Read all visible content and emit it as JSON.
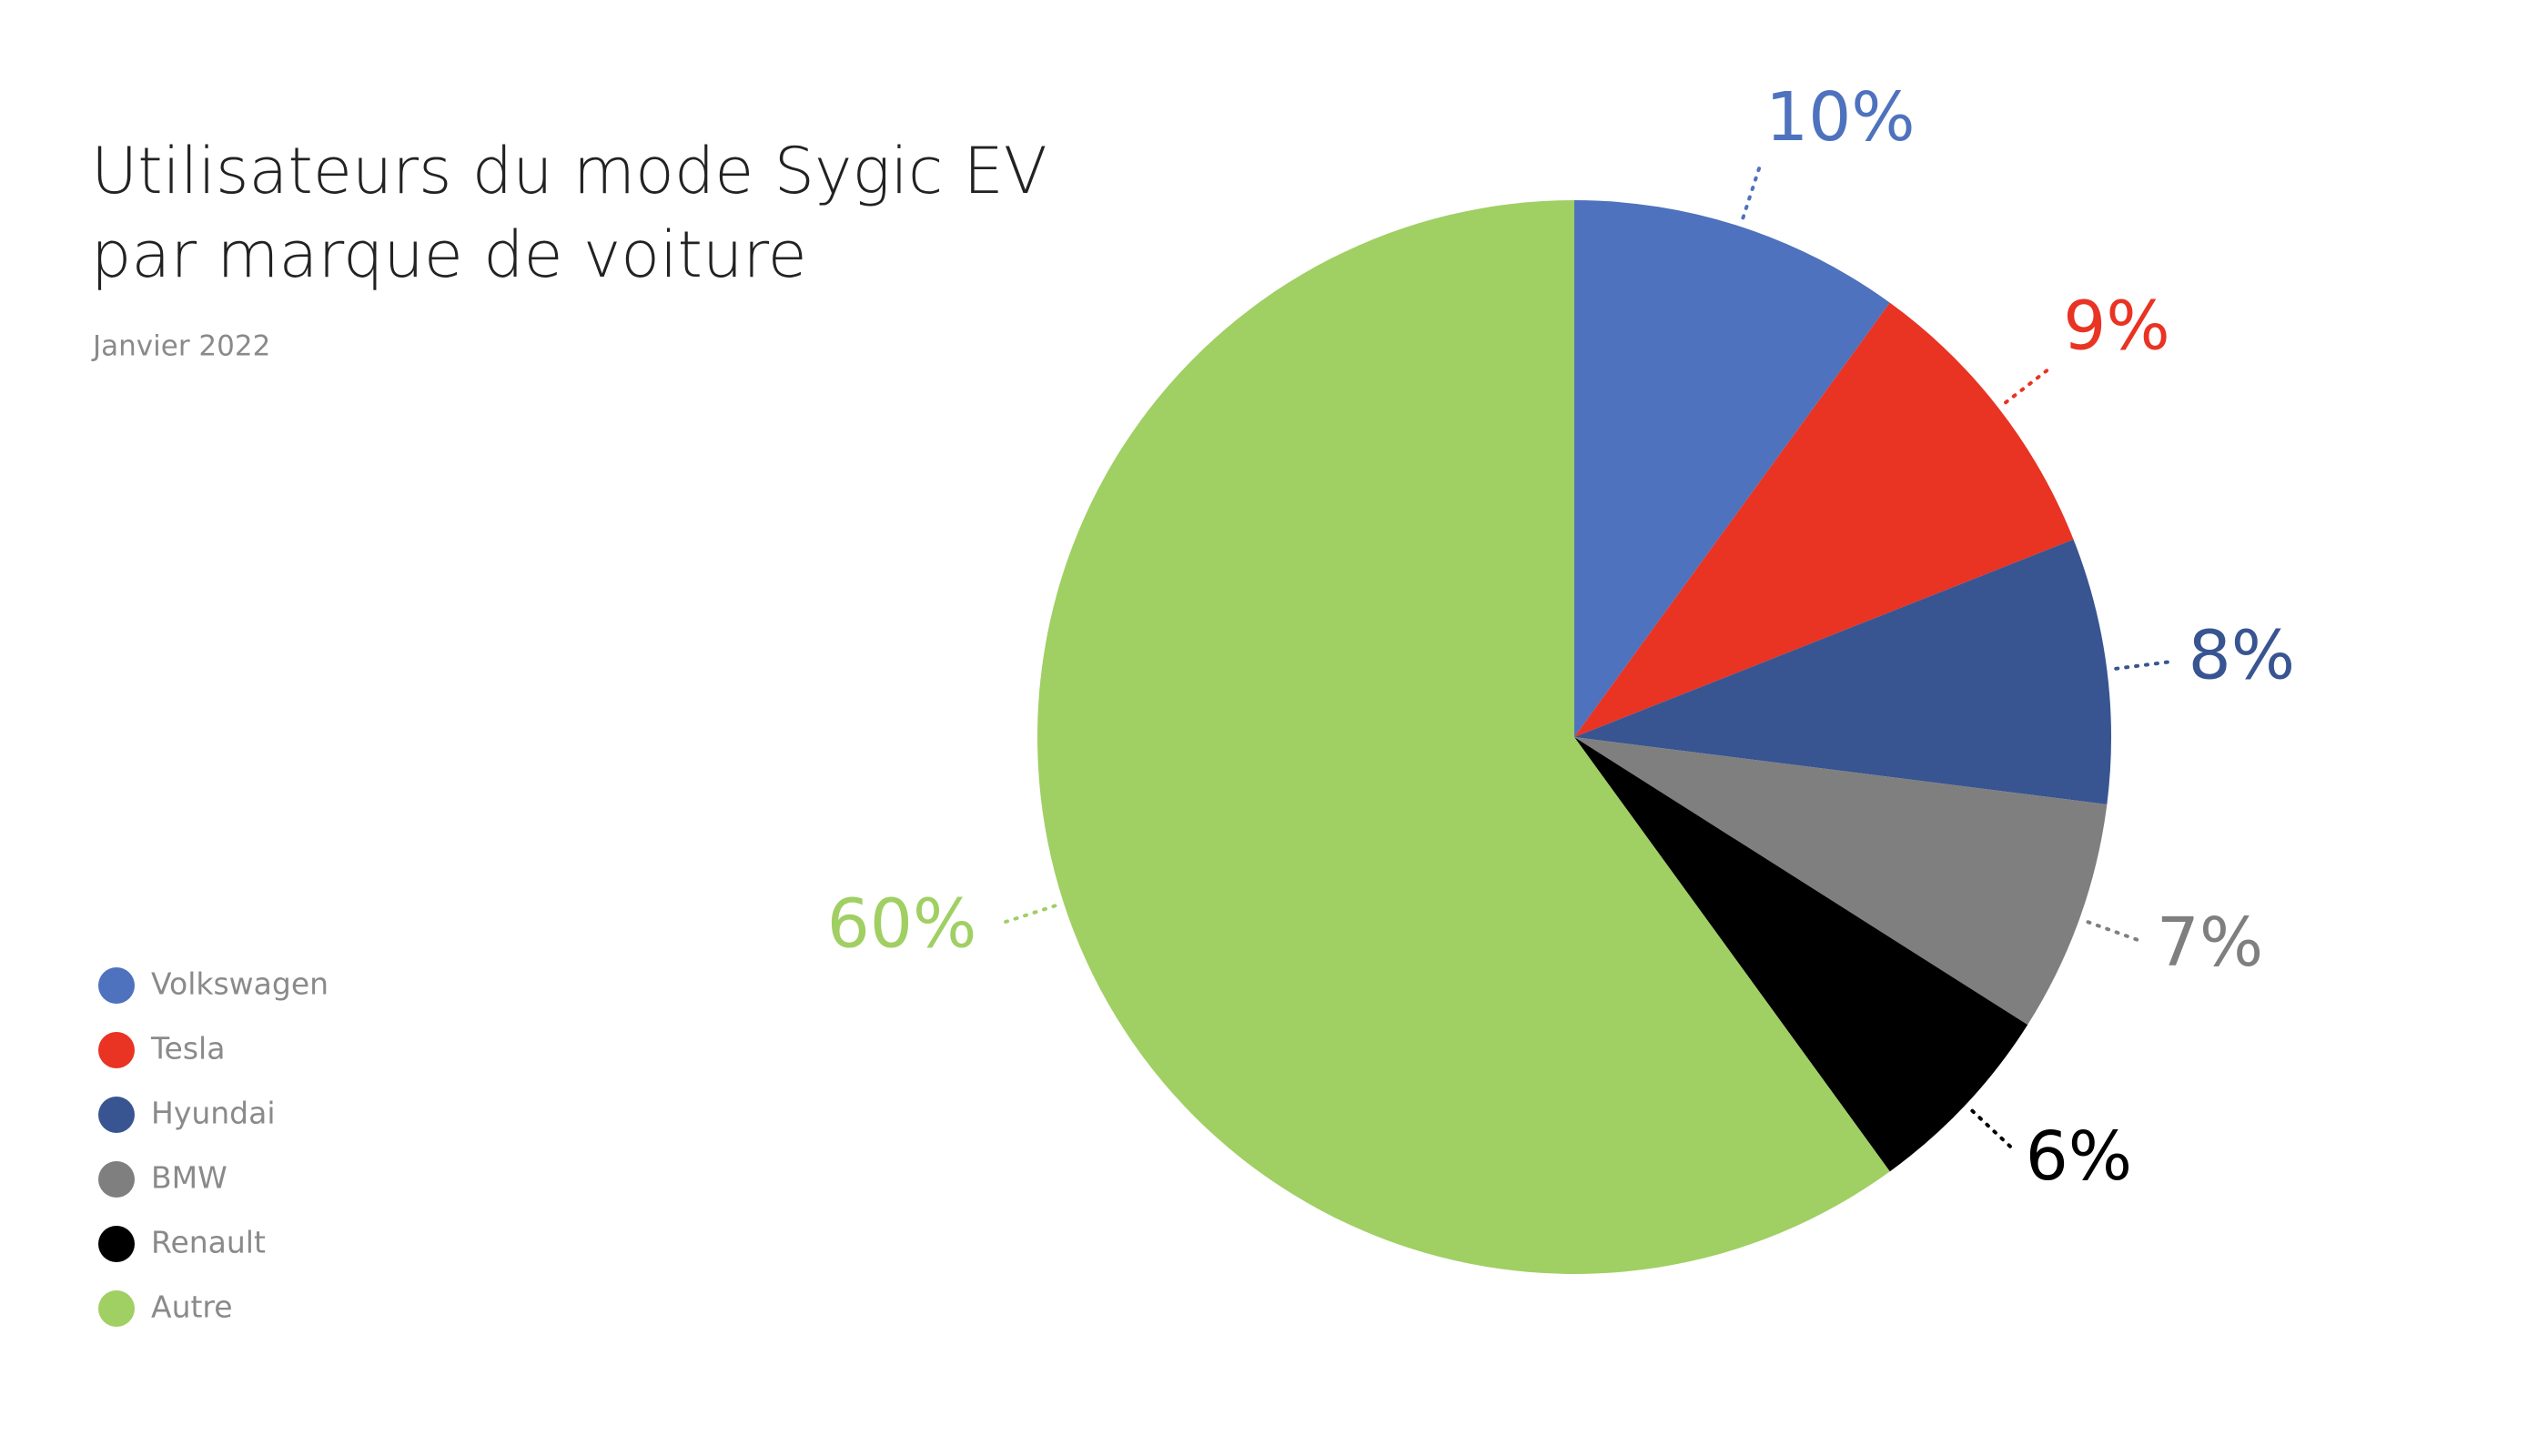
{
  "chart_data": {
    "type": "pie",
    "title": [
      "Utilisateurs du mode Sygic EV",
      "par marque de voiture"
    ],
    "subtitle": "Janvier 2022",
    "categories": [
      "Volkswagen",
      "Tesla",
      "Hyundai",
      "BMW",
      "Renault",
      "Autre"
    ],
    "values": [
      10,
      9,
      8,
      7,
      6,
      60
    ],
    "value_labels": [
      "10%",
      "9%",
      "8%",
      "7%",
      "6%",
      "60%"
    ],
    "colors": [
      "#4e72bd",
      "#e93323",
      "#385591",
      "#7f7f7f",
      "#000000",
      "#a0cf63"
    ],
    "legend": "bottom-left"
  }
}
